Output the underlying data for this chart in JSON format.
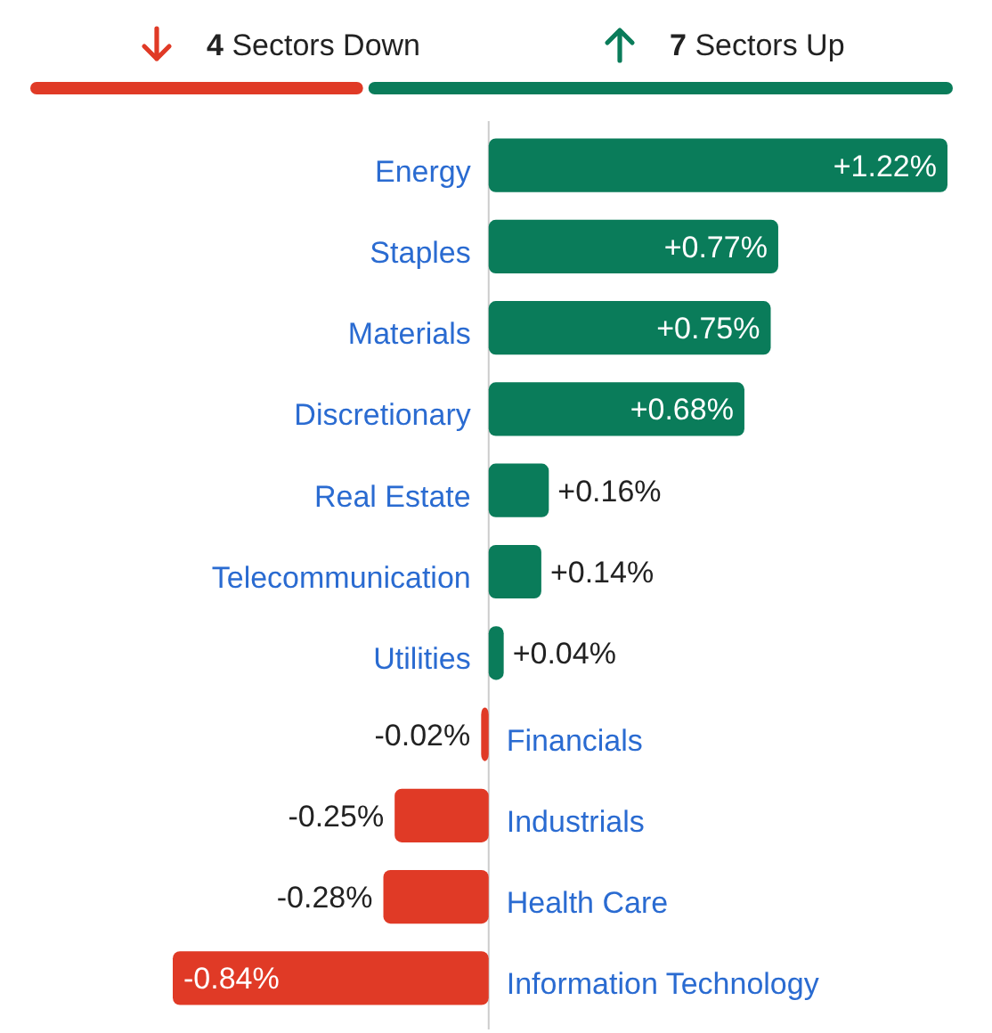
{
  "chart_data": {
    "type": "bar",
    "orientation": "horizontal",
    "categories": [
      "Energy",
      "Staples",
      "Materials",
      "Discretionary",
      "Real Estate",
      "Telecommunication",
      "Utilities",
      "Financials",
      "Industrials",
      "Health Care",
      "Information Technology"
    ],
    "values": [
      1.22,
      0.77,
      0.75,
      0.68,
      0.16,
      0.14,
      0.04,
      -0.02,
      -0.25,
      -0.28,
      -0.84
    ],
    "value_labels": [
      "+1.22%",
      "+0.77%",
      "+0.75%",
      "+0.68%",
      "+0.16%",
      "+0.14%",
      "+0.04%",
      "-0.02%",
      "-0.25%",
      "-0.28%",
      "-0.84%"
    ],
    "colors": [
      "#0a7c5a",
      "#0a7c5a",
      "#0a7c5a",
      "#0a7c5a",
      "#0a7c5a",
      "#0a7c5a",
      "#0a7c5a",
      "#e03a26",
      "#e03a26",
      "#e03a26",
      "#e03a26"
    ],
    "annotations": [
      "4 Sectors Down",
      "7 Sectors Up"
    ]
  }
}
